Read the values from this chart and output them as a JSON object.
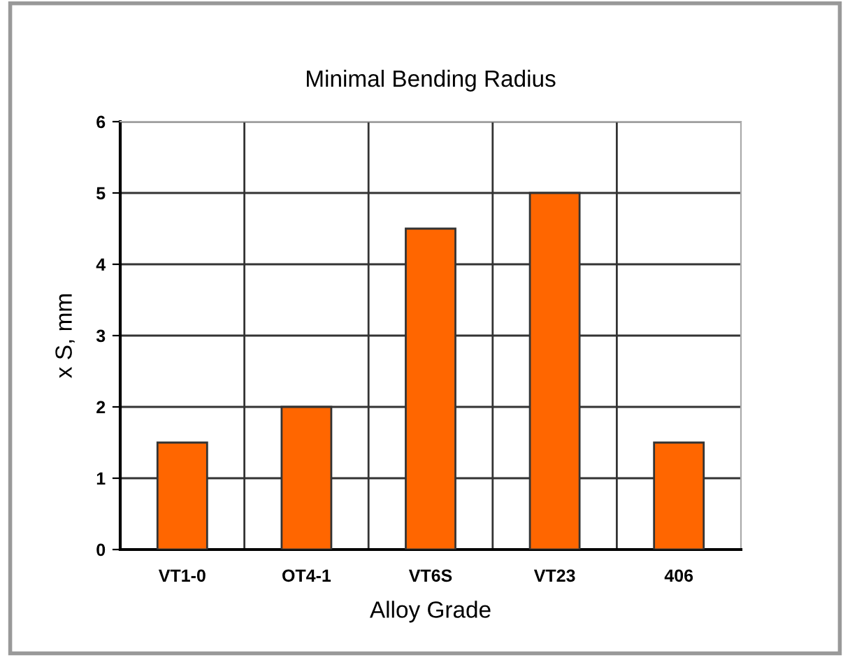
{
  "chart_data": {
    "type": "bar",
    "title": "Minimal Bending Radius",
    "xlabel": "Alloy Grade",
    "ylabel": "x S, mm",
    "categories": [
      "VT1-0",
      "OT4-1",
      "VT6S",
      "VT23",
      "406"
    ],
    "values": [
      1.5,
      2,
      4.5,
      5,
      1.5
    ],
    "color": "#ff6600",
    "ylim": [
      0,
      6
    ],
    "yticks": [
      0,
      1,
      2,
      3,
      4,
      5,
      6
    ],
    "grid": true,
    "legend": false
  }
}
